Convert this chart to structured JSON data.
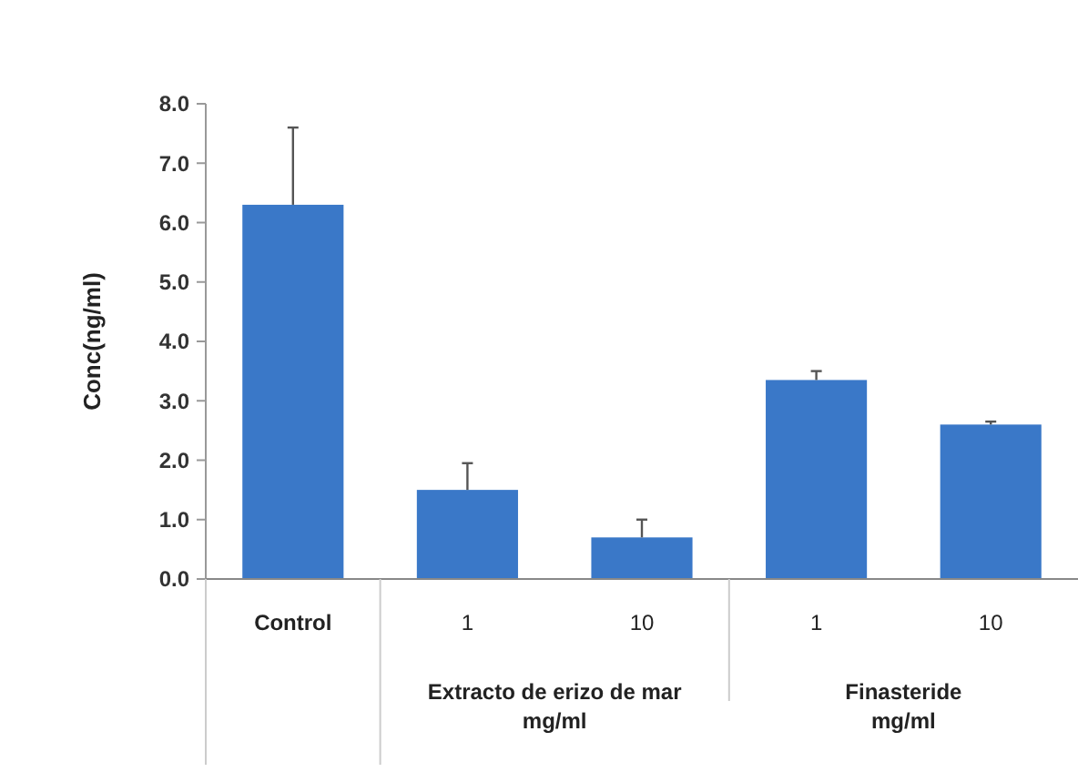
{
  "chart_data": {
    "type": "bar",
    "ylabel": "Conc(ng/ml)",
    "categories": [
      "Control",
      "1",
      "10",
      "1",
      "10"
    ],
    "values": [
      6.3,
      1.5,
      0.7,
      3.35,
      2.6
    ],
    "errors": [
      [
        6.3,
        7.6
      ],
      [
        1.5,
        1.95
      ],
      [
        0.7,
        1.0
      ],
      [
        3.35,
        3.5
      ],
      [
        2.6,
        2.65
      ]
    ],
    "color": "#3a78c8",
    "ylim": [
      0,
      8
    ],
    "yticks": [
      {
        "value": 0,
        "label": "0.0"
      },
      {
        "value": 1,
        "label": "1.0"
      },
      {
        "value": 2,
        "label": "2.0"
      },
      {
        "value": 3,
        "label": "3.0"
      },
      {
        "value": 4,
        "label": "4.0"
      },
      {
        "value": 5,
        "label": "5.0"
      },
      {
        "value": 6,
        "label": "6.0"
      },
      {
        "value": 7,
        "label": "7.0"
      },
      {
        "value": 8,
        "label": "8.0"
      }
    ],
    "annotations": [
      "Extracto de erizo de mar\nmg/ml",
      "Finasteride\nmg/ml"
    ]
  }
}
